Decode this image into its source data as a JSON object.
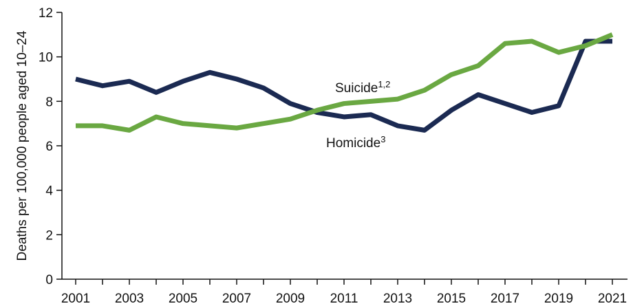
{
  "chart_data": {
    "type": "line",
    "title": "",
    "xlabel": "",
    "ylabel": "Deaths per 100,000 people aged 10–24",
    "ylim": [
      0,
      12
    ],
    "yticks": [
      0,
      2,
      4,
      6,
      8,
      10,
      12
    ],
    "xlim": [
      2001,
      2021
    ],
    "xtick_labels": [
      "2001",
      "2003",
      "2005",
      "2007",
      "2009",
      "2011",
      "2013",
      "2015",
      "2017",
      "2019",
      "2021"
    ],
    "grid": false,
    "x": [
      2001,
      2002,
      2003,
      2004,
      2005,
      2006,
      2007,
      2008,
      2009,
      2010,
      2011,
      2012,
      2013,
      2014,
      2015,
      2016,
      2017,
      2018,
      2019,
      2020,
      2021
    ],
    "series": [
      {
        "name": "Homicide",
        "superscript": "3",
        "color": "#1b2a52",
        "values": [
          9.0,
          8.7,
          8.9,
          8.4,
          8.9,
          9.3,
          9.0,
          8.6,
          7.9,
          7.5,
          7.3,
          7.4,
          6.9,
          6.7,
          7.6,
          8.3,
          7.9,
          7.5,
          7.8,
          10.7,
          10.7
        ]
      },
      {
        "name": "Suicide",
        "superscript": "1,2",
        "color": "#6aa842",
        "values": [
          6.9,
          6.9,
          6.7,
          7.3,
          7.0,
          6.9,
          6.8,
          7.0,
          7.2,
          7.6,
          7.9,
          8.0,
          8.1,
          8.5,
          9.2,
          9.6,
          10.6,
          10.7,
          10.2,
          10.5,
          11.0
        ]
      }
    ]
  }
}
